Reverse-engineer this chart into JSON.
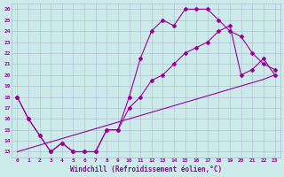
{
  "xlabel": "Windchill (Refroidissement éolien,°C)",
  "xlim": [
    -0.5,
    23.5
  ],
  "ylim": [
    12.5,
    26.5
  ],
  "yticks": [
    13,
    14,
    15,
    16,
    17,
    18,
    19,
    20,
    21,
    22,
    23,
    24,
    25,
    26
  ],
  "xticks": [
    0,
    1,
    2,
    3,
    4,
    5,
    6,
    7,
    8,
    9,
    10,
    11,
    12,
    13,
    14,
    15,
    16,
    17,
    18,
    19,
    20,
    21,
    22,
    23
  ],
  "bg_color": "#cceaea",
  "line_color": "#990099",
  "grid_color": "#aabbcc",
  "line1_x": [
    0,
    1,
    2,
    3,
    4,
    5,
    6,
    7,
    8,
    9,
    10,
    11,
    12,
    13,
    14,
    15,
    16,
    17,
    18,
    19,
    20,
    21,
    22,
    23
  ],
  "line1_y": [
    18,
    16,
    14.5,
    13,
    13.8,
    13,
    13,
    13,
    15,
    15,
    18,
    21.5,
    24,
    25,
    24.5,
    26,
    26,
    26,
    25,
    24,
    23.5,
    22,
    21,
    20.5
  ],
  "line2_x": [
    0,
    1,
    2,
    3,
    4,
    5,
    6,
    7,
    8,
    9,
    10,
    11,
    12,
    13,
    14,
    15,
    16,
    17,
    18,
    19,
    20,
    21,
    22,
    23
  ],
  "line2_y": [
    18,
    16,
    14.5,
    13,
    13.8,
    13,
    13,
    13,
    15,
    15,
    17,
    18,
    19.5,
    20,
    21,
    22,
    22.5,
    23,
    24,
    24.5,
    20,
    20.5,
    21.5,
    20.0
  ],
  "line3_x": [
    0,
    1,
    2,
    3,
    4,
    5,
    6,
    7,
    8,
    9,
    10,
    11,
    12,
    13,
    14,
    15,
    16,
    17,
    18,
    19,
    20,
    21,
    22,
    23
  ],
  "line3_y": [
    13,
    13.3,
    13.6,
    13.9,
    14.2,
    14.5,
    14.8,
    15.1,
    15.4,
    15.7,
    16.0,
    16.3,
    16.6,
    16.9,
    17.2,
    17.5,
    17.8,
    18.1,
    18.4,
    18.7,
    19.0,
    19.3,
    19.6,
    20.0
  ]
}
